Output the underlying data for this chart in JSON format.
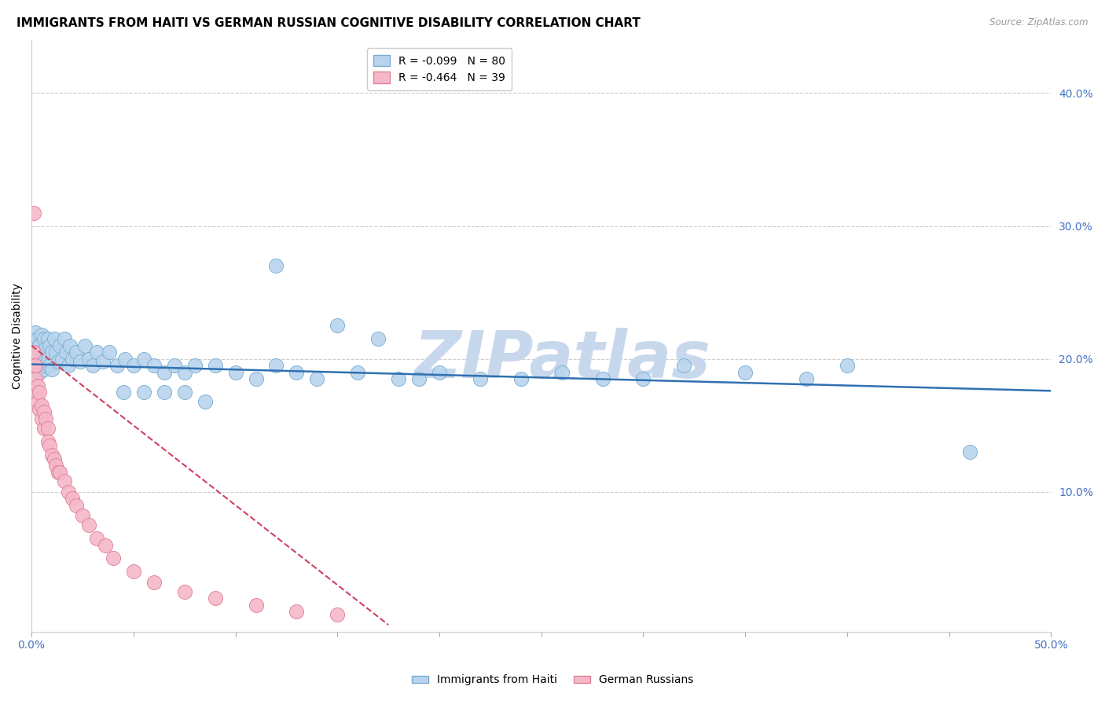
{
  "title": "IMMIGRANTS FROM HAITI VS GERMAN RUSSIAN COGNITIVE DISABILITY CORRELATION CHART",
  "source": "Source: ZipAtlas.com",
  "ylabel": "Cognitive Disability",
  "watermark": "ZIPatlas",
  "xlim": [
    0.0,
    0.5
  ],
  "ylim": [
    -0.005,
    0.44
  ],
  "xtick_vals": [
    0.0,
    0.05,
    0.1,
    0.15,
    0.2,
    0.25,
    0.3,
    0.35,
    0.4,
    0.45,
    0.5
  ],
  "xtick_labels": [
    "0.0%",
    "",
    "",
    "",
    "",
    "",
    "",
    "",
    "",
    "",
    "50.0%"
  ],
  "ytick_vals": [
    0.1,
    0.2,
    0.3,
    0.4
  ],
  "ytick_labels": [
    "10.0%",
    "20.0%",
    "30.0%",
    "40.0%"
  ],
  "legend1_label": "R = -0.099   N = 80",
  "legend2_label": "R = -0.464   N = 39",
  "legend1_color": "#b8d4ee",
  "legend2_color": "#f5b8c8",
  "line1_color": "#3070b0",
  "line2_color": "#d04060",
  "scatter1_color": "#b8d4ee",
  "scatter2_color": "#f5b8c8",
  "scatter1_edge": "#7aadcf",
  "scatter2_edge": "#e08098",
  "background_color": "#ffffff",
  "grid_color": "#cccccc",
  "tick_color": "#4472c4",
  "title_fontsize": 11,
  "axis_label_fontsize": 10,
  "tick_fontsize": 10,
  "legend_fontsize": 10,
  "watermark_color": "#c8d8ec",
  "watermark_fontsize": 60,
  "haiti_line_x": [
    0.0,
    0.5
  ],
  "haiti_line_y": [
    0.196,
    0.176
  ],
  "german_line_x": [
    0.0,
    0.175
  ],
  "german_line_y": [
    0.21,
    0.0
  ],
  "haiti_x": [
    0.001,
    0.001,
    0.002,
    0.002,
    0.002,
    0.003,
    0.003,
    0.003,
    0.004,
    0.004,
    0.004,
    0.005,
    0.005,
    0.005,
    0.006,
    0.006,
    0.006,
    0.007,
    0.007,
    0.008,
    0.008,
    0.009,
    0.009,
    0.01,
    0.01,
    0.011,
    0.012,
    0.013,
    0.014,
    0.015,
    0.016,
    0.017,
    0.018,
    0.019,
    0.02,
    0.022,
    0.024,
    0.026,
    0.028,
    0.03,
    0.032,
    0.035,
    0.038,
    0.042,
    0.046,
    0.05,
    0.055,
    0.06,
    0.065,
    0.07,
    0.075,
    0.08,
    0.09,
    0.1,
    0.11,
    0.12,
    0.13,
    0.14,
    0.16,
    0.18,
    0.2,
    0.22,
    0.24,
    0.26,
    0.28,
    0.3,
    0.32,
    0.35,
    0.38,
    0.4,
    0.12,
    0.15,
    0.17,
    0.19,
    0.045,
    0.055,
    0.065,
    0.075,
    0.085,
    0.46
  ],
  "haiti_y": [
    0.2,
    0.215,
    0.21,
    0.195,
    0.22,
    0.205,
    0.198,
    0.215,
    0.19,
    0.21,
    0.2,
    0.218,
    0.195,
    0.205,
    0.215,
    0.2,
    0.192,
    0.208,
    0.195,
    0.215,
    0.2,
    0.195,
    0.21,
    0.205,
    0.192,
    0.215,
    0.205,
    0.198,
    0.21,
    0.2,
    0.215,
    0.205,
    0.195,
    0.21,
    0.2,
    0.205,
    0.198,
    0.21,
    0.2,
    0.195,
    0.205,
    0.198,
    0.205,
    0.195,
    0.2,
    0.195,
    0.2,
    0.195,
    0.19,
    0.195,
    0.19,
    0.195,
    0.195,
    0.19,
    0.185,
    0.195,
    0.19,
    0.185,
    0.19,
    0.185,
    0.19,
    0.185,
    0.185,
    0.19,
    0.185,
    0.185,
    0.195,
    0.19,
    0.185,
    0.195,
    0.27,
    0.225,
    0.215,
    0.185,
    0.175,
    0.175,
    0.175,
    0.175,
    0.168,
    0.13
  ],
  "german_x": [
    0.001,
    0.001,
    0.002,
    0.002,
    0.002,
    0.003,
    0.003,
    0.004,
    0.004,
    0.005,
    0.005,
    0.006,
    0.006,
    0.007,
    0.008,
    0.008,
    0.009,
    0.01,
    0.011,
    0.012,
    0.013,
    0.014,
    0.016,
    0.018,
    0.02,
    0.022,
    0.025,
    0.028,
    0.032,
    0.036,
    0.04,
    0.05,
    0.06,
    0.075,
    0.09,
    0.11,
    0.13,
    0.15,
    0.001
  ],
  "german_y": [
    0.195,
    0.205,
    0.185,
    0.175,
    0.195,
    0.168,
    0.18,
    0.162,
    0.175,
    0.165,
    0.155,
    0.16,
    0.148,
    0.155,
    0.148,
    0.138,
    0.135,
    0.128,
    0.125,
    0.12,
    0.115,
    0.115,
    0.108,
    0.1,
    0.095,
    0.09,
    0.082,
    0.075,
    0.065,
    0.06,
    0.05,
    0.04,
    0.032,
    0.025,
    0.02,
    0.015,
    0.01,
    0.008,
    0.31
  ]
}
